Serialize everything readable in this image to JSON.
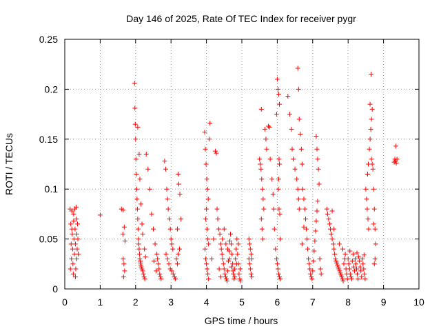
{
  "chart_data": {
    "type": "scatter",
    "title": "Day 146 of 2025, Rate Of TEC Index for receiver pygr",
    "xlabel": "GPS time / hours",
    "ylabel": "ROTI / TECUs",
    "xlim": [
      0,
      10
    ],
    "ylim": [
      0,
      0.25
    ],
    "x_ticks": [
      "0",
      "1",
      "2",
      "3",
      "4",
      "5",
      "6",
      "7",
      "8",
      "9",
      "10"
    ],
    "y_ticks": [
      "0",
      "0.05",
      "0.1",
      "0.15",
      "0.2",
      "0.25"
    ],
    "grid": true,
    "marker": "+",
    "color": "#ff0000",
    "points": [
      [
        0.15,
        0.08
      ],
      [
        0.17,
        0.065
      ],
      [
        0.18,
        0.045
      ],
      [
        0.19,
        0.03
      ],
      [
        0.2,
        0.078
      ],
      [
        0.21,
        0.055
      ],
      [
        0.22,
        0.04
      ],
      [
        0.23,
        0.025
      ],
      [
        0.24,
        0.015
      ],
      [
        0.25,
        0.068
      ],
      [
        0.26,
        0.05
      ],
      [
        0.27,
        0.035
      ],
      [
        0.28,
        0.08
      ],
      [
        0.29,
        0.06
      ],
      [
        0.3,
        0.045
      ],
      [
        0.31,
        0.02
      ],
      [
        0.32,
        0.082
      ],
      [
        0.33,
        0.07
      ],
      [
        0.34,
        0.055
      ],
      [
        0.35,
        0.04
      ],
      [
        0.36,
        0.065
      ],
      [
        0.37,
        0.05
      ],
      [
        0.38,
        0.035
      ],
      [
        0.16,
        0.02
      ],
      [
        0.3,
        0.012
      ],
      [
        0.25,
        0.075
      ],
      [
        0.34,
        0.03
      ],
      [
        0.2,
        0.06
      ],
      [
        1.0,
        0.074
      ],
      [
        1.6,
        0.08
      ],
      [
        1.65,
        0.079
      ],
      [
        1.68,
        0.062
      ],
      [
        1.7,
        0.048
      ],
      [
        1.65,
        0.03
      ],
      [
        1.67,
        0.025
      ],
      [
        1.66,
        0.012
      ],
      [
        1.69,
        0.018
      ],
      [
        1.64,
        0.055
      ],
      [
        1.97,
        0.206
      ],
      [
        1.98,
        0.181
      ],
      [
        1.99,
        0.165
      ],
      [
        2.0,
        0.15
      ],
      [
        2.01,
        0.13
      ],
      [
        2.02,
        0.115
      ],
      [
        2.03,
        0.1
      ],
      [
        2.04,
        0.09
      ],
      [
        2.05,
        0.08
      ],
      [
        2.06,
        0.07
      ],
      [
        2.07,
        0.06
      ],
      [
        2.08,
        0.05
      ],
      [
        2.09,
        0.045
      ],
      [
        2.1,
        0.04
      ],
      [
        2.11,
        0.035
      ],
      [
        2.12,
        0.03
      ],
      [
        2.13,
        0.028
      ],
      [
        2.14,
        0.026
      ],
      [
        2.15,
        0.024
      ],
      [
        2.16,
        0.022
      ],
      [
        2.18,
        0.02
      ],
      [
        2.2,
        0.018
      ],
      [
        2.22,
        0.015
      ],
      [
        2.24,
        0.012
      ],
      [
        2.26,
        0.01
      ],
      [
        2.06,
        0.162
      ],
      [
        2.1,
        0.135
      ],
      [
        2.12,
        0.11
      ],
      [
        2.15,
        0.085
      ],
      [
        2.18,
        0.065
      ],
      [
        2.2,
        0.055
      ],
      [
        2.25,
        0.04
      ],
      [
        2.28,
        0.032
      ],
      [
        2.3,
        0.135
      ],
      [
        2.35,
        0.12
      ],
      [
        2.4,
        0.1
      ],
      [
        2.45,
        0.075
      ],
      [
        2.5,
        0.06
      ],
      [
        2.55,
        0.045
      ],
      [
        2.6,
        0.035
      ],
      [
        2.62,
        0.03
      ],
      [
        2.64,
        0.025
      ],
      [
        2.66,
        0.02
      ],
      [
        2.68,
        0.015
      ],
      [
        2.7,
        0.012
      ],
      [
        2.72,
        0.01
      ],
      [
        2.58,
        0.018
      ],
      [
        2.52,
        0.028
      ],
      [
        2.82,
        0.128
      ],
      [
        2.85,
        0.12
      ],
      [
        2.88,
        0.1
      ],
      [
        2.9,
        0.09
      ],
      [
        2.92,
        0.08
      ],
      [
        2.95,
        0.07
      ],
      [
        2.98,
        0.06
      ],
      [
        3.0,
        0.05
      ],
      [
        3.02,
        0.045
      ],
      [
        3.05,
        0.04
      ],
      [
        2.86,
        0.035
      ],
      [
        2.9,
        0.03
      ],
      [
        2.94,
        0.025
      ],
      [
        2.98,
        0.02
      ],
      [
        3.02,
        0.018
      ],
      [
        3.06,
        0.015
      ],
      [
        3.1,
        0.012
      ],
      [
        3.12,
        0.01
      ],
      [
        3.15,
        0.03
      ],
      [
        3.18,
        0.025
      ],
      [
        3.2,
        0.115
      ],
      [
        3.22,
        0.105
      ],
      [
        3.25,
        0.095
      ],
      [
        3.28,
        0.07
      ],
      [
        3.24,
        0.04
      ],
      [
        3.2,
        0.035
      ],
      [
        3.18,
        0.06
      ],
      [
        3.95,
        0.157
      ],
      [
        3.97,
        0.14
      ],
      [
        3.99,
        0.125
      ],
      [
        4.01,
        0.11
      ],
      [
        4.03,
        0.1
      ],
      [
        4.05,
        0.09
      ],
      [
        4.0,
        0.08
      ],
      [
        3.98,
        0.07
      ],
      [
        4.02,
        0.06
      ],
      [
        4.04,
        0.05
      ],
      [
        4.06,
        0.045
      ],
      [
        3.96,
        0.04
      ],
      [
        3.98,
        0.03
      ],
      [
        4.0,
        0.025
      ],
      [
        4.02,
        0.02
      ],
      [
        4.04,
        0.015
      ],
      [
        4.06,
        0.01
      ],
      [
        4.08,
        0.15
      ],
      [
        4.1,
        0.166
      ],
      [
        4.15,
        0.03
      ],
      [
        4.2,
        0.05
      ],
      [
        4.25,
        0.138
      ],
      [
        4.28,
        0.136
      ],
      [
        4.3,
        0.08
      ],
      [
        4.32,
        0.07
      ],
      [
        4.35,
        0.06
      ],
      [
        4.38,
        0.055
      ],
      [
        4.4,
        0.045
      ],
      [
        4.42,
        0.04
      ],
      [
        4.44,
        0.035
      ],
      [
        4.46,
        0.03
      ],
      [
        4.48,
        0.025
      ],
      [
        4.5,
        0.02
      ],
      [
        4.52,
        0.015
      ],
      [
        4.54,
        0.012
      ],
      [
        4.56,
        0.01
      ],
      [
        4.58,
        0.008
      ],
      [
        4.6,
        0.018
      ],
      [
        4.62,
        0.028
      ],
      [
        4.64,
        0.038
      ],
      [
        4.66,
        0.048
      ],
      [
        4.68,
        0.055
      ],
      [
        4.7,
        0.045
      ],
      [
        4.72,
        0.035
      ],
      [
        4.74,
        0.025
      ],
      [
        4.76,
        0.015
      ],
      [
        4.78,
        0.01
      ],
      [
        4.8,
        0.02
      ],
      [
        4.82,
        0.03
      ],
      [
        4.84,
        0.04
      ],
      [
        4.86,
        0.05
      ],
      [
        4.88,
        0.035
      ],
      [
        4.9,
        0.025
      ],
      [
        4.92,
        0.015
      ],
      [
        4.94,
        0.01
      ],
      [
        4.96,
        0.008
      ],
      [
        4.36,
        0.02
      ],
      [
        4.4,
        0.012
      ],
      [
        4.45,
        0.05
      ],
      [
        4.5,
        0.06
      ],
      [
        4.55,
        0.045
      ],
      [
        4.6,
        0.04
      ],
      [
        4.65,
        0.03
      ],
      [
        4.7,
        0.022
      ],
      [
        4.75,
        0.018
      ],
      [
        4.8,
        0.012
      ],
      [
        4.85,
        0.025
      ],
      [
        4.9,
        0.045
      ],
      [
        4.95,
        0.02
      ],
      [
        5.2,
        0.05
      ],
      [
        5.22,
        0.045
      ],
      [
        5.24,
        0.04
      ],
      [
        5.26,
        0.035
      ],
      [
        5.28,
        0.03
      ],
      [
        5.22,
        0.025
      ],
      [
        5.24,
        0.02
      ],
      [
        5.26,
        0.015
      ],
      [
        5.28,
        0.012
      ],
      [
        5.2,
        0.03
      ],
      [
        5.5,
        0.13
      ],
      [
        5.52,
        0.125
      ],
      [
        5.54,
        0.12
      ],
      [
        5.56,
        0.11
      ],
      [
        5.58,
        0.1
      ],
      [
        5.6,
        0.09
      ],
      [
        5.62,
        0.08
      ],
      [
        5.55,
        0.07
      ],
      [
        5.57,
        0.06
      ],
      [
        5.59,
        0.05
      ],
      [
        5.65,
        0.16
      ],
      [
        5.68,
        0.15
      ],
      [
        5.7,
        0.14
      ],
      [
        5.75,
        0.163
      ],
      [
        5.78,
        0.162
      ],
      [
        5.8,
        0.13
      ],
      [
        5.85,
        0.11
      ],
      [
        5.88,
        0.095
      ],
      [
        5.9,
        0.08
      ],
      [
        5.92,
        0.06
      ],
      [
        5.95,
        0.04
      ],
      [
        5.98,
        0.03
      ],
      [
        6.0,
        0.025
      ],
      [
        6.02,
        0.02
      ],
      [
        6.04,
        0.015
      ],
      [
        6.06,
        0.012
      ],
      [
        6.08,
        0.01
      ],
      [
        6.0,
        0.21
      ],
      [
        6.02,
        0.2
      ],
      [
        6.04,
        0.195
      ],
      [
        6.06,
        0.185
      ],
      [
        5.98,
        0.175
      ],
      [
        6.05,
        0.13
      ],
      [
        6.06,
        0.125
      ],
      [
        6.04,
        0.11
      ],
      [
        6.03,
        0.1
      ],
      [
        6.05,
        0.08
      ],
      [
        6.07,
        0.075
      ],
      [
        6.08,
        0.05
      ],
      [
        5.55,
        0.18
      ],
      [
        6.3,
        0.193
      ],
      [
        6.35,
        0.175
      ],
      [
        6.4,
        0.16
      ],
      [
        6.42,
        0.14
      ],
      [
        6.45,
        0.13
      ],
      [
        6.5,
        0.12
      ],
      [
        6.55,
        0.11
      ],
      [
        6.58,
        0.1
      ],
      [
        6.6,
        0.09
      ],
      [
        6.62,
        0.08
      ],
      [
        6.58,
        0.221
      ],
      [
        6.6,
        0.2
      ],
      [
        6.62,
        0.17
      ],
      [
        6.65,
        0.155
      ],
      [
        6.68,
        0.14
      ],
      [
        6.7,
        0.125
      ],
      [
        6.72,
        0.1
      ],
      [
        6.75,
        0.09
      ],
      [
        6.78,
        0.08
      ],
      [
        6.8,
        0.07
      ],
      [
        6.82,
        0.06
      ],
      [
        6.84,
        0.05
      ],
      [
        6.86,
        0.04
      ],
      [
        6.88,
        0.03
      ],
      [
        6.9,
        0.025
      ],
      [
        6.92,
        0.02
      ],
      [
        6.94,
        0.015
      ],
      [
        6.96,
        0.012
      ],
      [
        6.98,
        0.01
      ],
      [
        7.0,
        0.018
      ],
      [
        7.02,
        0.028
      ],
      [
        7.04,
        0.038
      ],
      [
        7.06,
        0.048
      ],
      [
        7.08,
        0.058
      ],
      [
        7.1,
        0.068
      ],
      [
        7.12,
        0.078
      ],
      [
        7.14,
        0.088
      ],
      [
        7.1,
        0.153
      ],
      [
        7.12,
        0.14
      ],
      [
        7.14,
        0.13
      ],
      [
        7.16,
        0.12
      ],
      [
        7.18,
        0.105
      ],
      [
        7.2,
        0.03
      ],
      [
        7.22,
        0.02
      ],
      [
        7.24,
        0.015
      ],
      [
        6.75,
        0.062
      ],
      [
        6.7,
        0.045
      ],
      [
        7.4,
        0.08
      ],
      [
        7.42,
        0.075
      ],
      [
        7.45,
        0.07
      ],
      [
        7.48,
        0.065
      ],
      [
        7.5,
        0.06
      ],
      [
        7.52,
        0.055
      ],
      [
        7.55,
        0.05
      ],
      [
        7.58,
        0.045
      ],
      [
        7.6,
        0.04
      ],
      [
        7.62,
        0.035
      ],
      [
        7.64,
        0.03
      ],
      [
        7.66,
        0.028
      ],
      [
        7.68,
        0.026
      ],
      [
        7.7,
        0.024
      ],
      [
        7.72,
        0.022
      ],
      [
        7.74,
        0.02
      ],
      [
        7.76,
        0.018
      ],
      [
        7.78,
        0.016
      ],
      [
        7.8,
        0.014
      ],
      [
        7.82,
        0.012
      ],
      [
        7.84,
        0.01
      ],
      [
        7.86,
        0.008
      ],
      [
        7.88,
        0.025
      ],
      [
        7.9,
        0.03
      ],
      [
        7.92,
        0.035
      ],
      [
        7.94,
        0.02
      ],
      [
        7.96,
        0.015
      ],
      [
        7.98,
        0.01
      ],
      [
        8.0,
        0.03
      ],
      [
        8.02,
        0.025
      ],
      [
        8.04,
        0.02
      ],
      [
        8.06,
        0.015
      ],
      [
        8.08,
        0.012
      ],
      [
        8.1,
        0.01
      ],
      [
        8.12,
        0.028
      ],
      [
        8.14,
        0.035
      ],
      [
        8.16,
        0.022
      ],
      [
        8.18,
        0.018
      ],
      [
        8.2,
        0.03
      ],
      [
        8.22,
        0.025
      ],
      [
        8.24,
        0.02
      ],
      [
        8.26,
        0.015
      ],
      [
        8.28,
        0.01
      ],
      [
        8.3,
        0.032
      ],
      [
        8.32,
        0.028
      ],
      [
        8.34,
        0.022
      ],
      [
        8.36,
        0.018
      ],
      [
        8.38,
        0.012
      ],
      [
        8.4,
        0.03
      ],
      [
        8.42,
        0.025
      ],
      [
        8.44,
        0.02
      ],
      [
        8.46,
        0.015
      ],
      [
        8.48,
        0.01
      ],
      [
        7.55,
        0.078
      ],
      [
        7.6,
        0.06
      ],
      [
        7.75,
        0.045
      ],
      [
        7.85,
        0.04
      ],
      [
        8.05,
        0.038
      ],
      [
        8.25,
        0.036
      ],
      [
        8.45,
        0.034
      ],
      [
        8.5,
        0.1
      ],
      [
        8.52,
        0.09
      ],
      [
        8.54,
        0.08
      ],
      [
        8.56,
        0.07
      ],
      [
        8.58,
        0.06
      ],
      [
        8.55,
        0.115
      ],
      [
        8.57,
        0.125
      ],
      [
        8.6,
        0.14
      ],
      [
        8.62,
        0.15
      ],
      [
        8.64,
        0.16
      ],
      [
        8.66,
        0.17
      ],
      [
        8.68,
        0.18
      ],
      [
        8.62,
        0.185
      ],
      [
        8.65,
        0.215
      ],
      [
        8.66,
        0.13
      ],
      [
        8.68,
        0.125
      ],
      [
        8.7,
        0.12
      ],
      [
        8.72,
        0.1
      ],
      [
        8.74,
        0.08
      ],
      [
        8.76,
        0.06
      ],
      [
        8.78,
        0.045
      ],
      [
        8.76,
        0.03
      ],
      [
        8.74,
        0.025
      ],
      [
        8.72,
        0.065
      ],
      [
        9.3,
        0.127
      ],
      [
        9.32,
        0.13
      ],
      [
        9.34,
        0.128
      ],
      [
        9.36,
        0.126
      ],
      [
        9.38,
        0.13
      ],
      [
        9.35,
        0.143
      ]
    ]
  }
}
